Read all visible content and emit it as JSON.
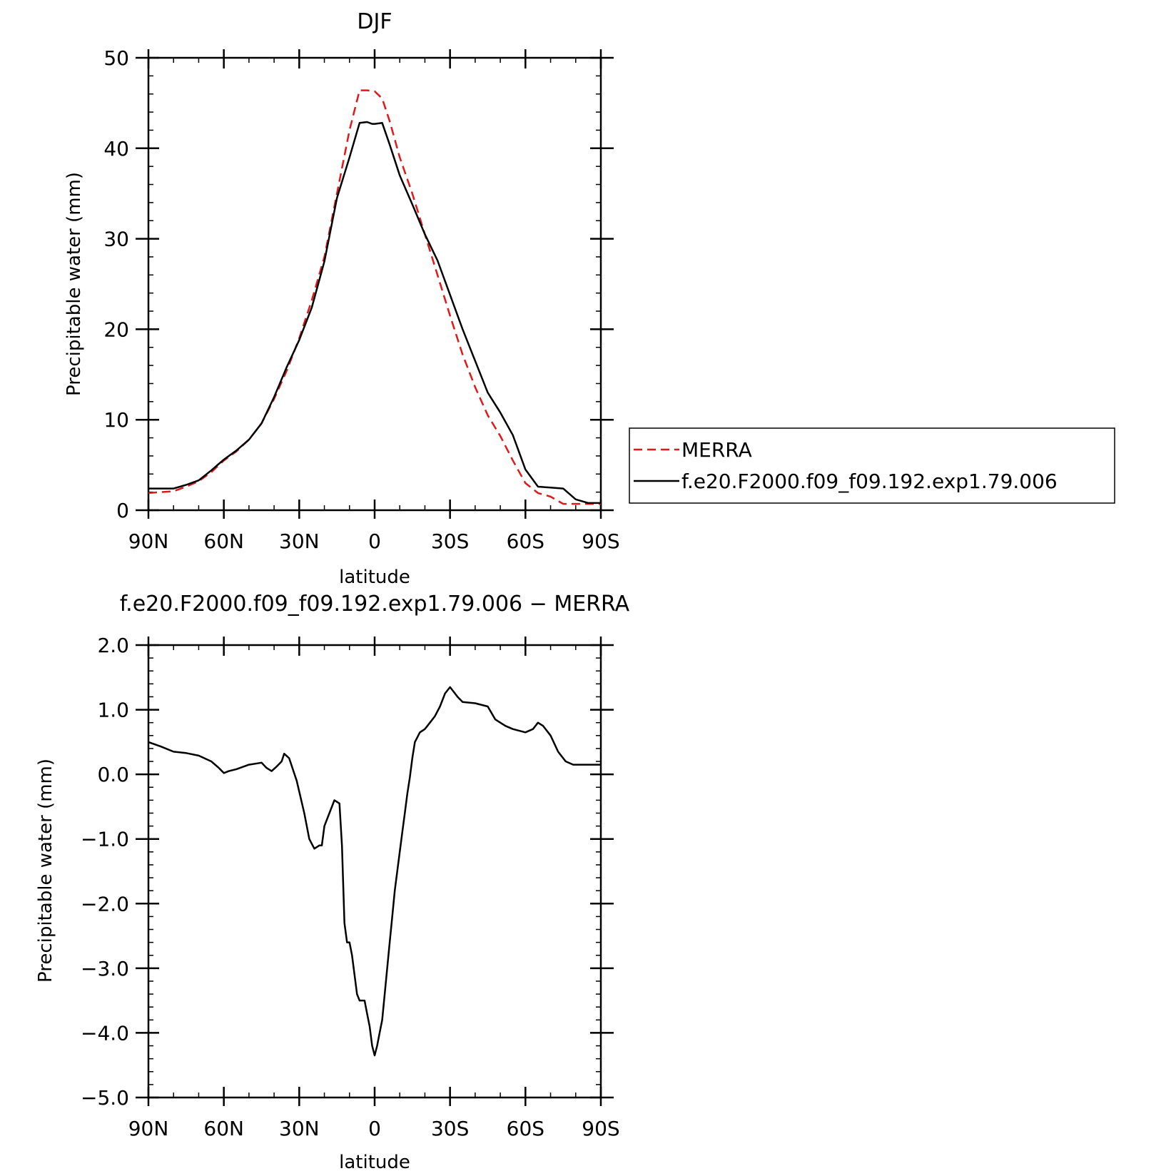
{
  "colors": {
    "merra": "#e0191b",
    "model": "#000000",
    "axes": "#000000"
  },
  "chart_data": [
    {
      "type": "line",
      "title": "DJF",
      "xlabel": "latitude",
      "ylabel": "Precipitable water (mm)",
      "xlim": [
        90,
        -90
      ],
      "ylim": [
        0,
        50
      ],
      "x_ticks": [
        {
          "value": 90,
          "label": "90N"
        },
        {
          "value": 60,
          "label": "60N"
        },
        {
          "value": 30,
          "label": "30N"
        },
        {
          "value": 0,
          "label": "0"
        },
        {
          "value": -30,
          "label": "30S"
        },
        {
          "value": -60,
          "label": "60S"
        },
        {
          "value": -90,
          "label": "90S"
        }
      ],
      "y_ticks": [
        {
          "value": 0,
          "label": "0"
        },
        {
          "value": 10,
          "label": "10"
        },
        {
          "value": 20,
          "label": "20"
        },
        {
          "value": 30,
          "label": "30"
        },
        {
          "value": 40,
          "label": "40"
        },
        {
          "value": 50,
          "label": "50"
        }
      ],
      "x_minor_step": 10,
      "y_minor_step": 2,
      "legend": "right",
      "series": [
        {
          "name": "MERRA",
          "style": "dashed",
          "color": "#e0191b",
          "x": [
            90,
            80,
            75,
            70,
            65,
            60,
            55,
            50,
            45,
            40,
            35,
            30,
            25,
            20,
            15,
            10,
            6,
            3,
            0,
            -3,
            -6,
            -10,
            -15,
            -20,
            -25,
            -30,
            -35,
            -40,
            -45,
            -50,
            -55,
            -60,
            -65,
            -70,
            -75,
            -80,
            -85,
            -90
          ],
          "values": [
            1.9,
            2.1,
            2.6,
            3.2,
            4.2,
            5.5,
            6.5,
            7.8,
            9.6,
            12.3,
            15.4,
            19.0,
            23.2,
            28.0,
            35.0,
            42.0,
            46.4,
            46.4,
            46.3,
            45.5,
            43.0,
            39.0,
            35.0,
            30.5,
            26.0,
            21.5,
            17.2,
            13.6,
            10.5,
            8.2,
            5.5,
            3.0,
            1.9,
            1.5,
            0.7,
            0.7,
            0.7,
            0.7
          ]
        },
        {
          "name": "f.e20.F2000.f09_f09.192.exp1.79.006",
          "style": "solid",
          "color": "#000000",
          "x": [
            90,
            80,
            75,
            70,
            65,
            60,
            55,
            50,
            45,
            40,
            35,
            30,
            25,
            20,
            15,
            10,
            6,
            3,
            1,
            0,
            -3,
            -6,
            -10,
            -15,
            -20,
            -25,
            -30,
            -35,
            -40,
            -45,
            -50,
            -55,
            -60,
            -65,
            -70,
            -75,
            -80,
            -85,
            -90
          ],
          "values": [
            2.4,
            2.4,
            2.8,
            3.3,
            4.4,
            5.6,
            6.6,
            7.8,
            9.6,
            12.5,
            15.8,
            18.8,
            22.4,
            27.5,
            34.5,
            39.0,
            42.8,
            42.9,
            42.7,
            42.7,
            42.8,
            40.4,
            37.0,
            33.8,
            30.5,
            27.6,
            23.8,
            20.0,
            16.5,
            13.0,
            10.8,
            8.3,
            4.5,
            2.6,
            2.5,
            2.4,
            1.2,
            0.8,
            0.8
          ]
        }
      ]
    },
    {
      "type": "line",
      "title": "f.e20.F2000.f09_f09.192.exp1.79.006 − MERRA",
      "xlabel": "latitude",
      "ylabel": "Precipitable water (mm)",
      "xlim": [
        90,
        -90
      ],
      "ylim": [
        -5,
        2
      ],
      "x_ticks": [
        {
          "value": 90,
          "label": "90N"
        },
        {
          "value": 60,
          "label": "60N"
        },
        {
          "value": 30,
          "label": "30N"
        },
        {
          "value": 0,
          "label": "0"
        },
        {
          "value": -30,
          "label": "30S"
        },
        {
          "value": -60,
          "label": "60S"
        },
        {
          "value": -90,
          "label": "90S"
        }
      ],
      "y_ticks": [
        {
          "value": 2,
          "label": "2.0"
        },
        {
          "value": 1,
          "label": "1.0"
        },
        {
          "value": 0,
          "label": "0.0"
        },
        {
          "value": -1,
          "label": "−1.0"
        },
        {
          "value": -2,
          "label": "−2.0"
        },
        {
          "value": -3,
          "label": "−3.0"
        },
        {
          "value": -4,
          "label": "−4.0"
        },
        {
          "value": -5,
          "label": "−5.0"
        }
      ],
      "x_minor_step": 10,
      "y_minor_step": 0.2,
      "series": [
        {
          "style": "solid",
          "color": "#000000",
          "x": [
            90,
            85,
            80,
            75,
            70,
            65,
            62,
            60,
            58,
            55,
            50,
            45,
            43,
            41,
            39,
            37,
            36,
            34,
            31,
            28,
            26,
            24,
            22,
            21,
            20,
            18,
            16,
            14,
            13,
            12,
            11,
            10,
            9,
            8,
            7,
            6,
            5,
            4,
            3,
            2,
            1,
            0,
            -1,
            -2,
            -3,
            -4,
            -5,
            -6,
            -7,
            -8,
            -9,
            -10,
            -11,
            -12,
            -13,
            -14,
            -15,
            -16,
            -18,
            -20,
            -22,
            -24,
            -26,
            -28,
            -30,
            -33,
            -35,
            -40,
            -45,
            -48,
            -50,
            -52,
            -55,
            -60,
            -63,
            -65,
            -67,
            -70,
            -73,
            -76,
            -79,
            -80,
            -82,
            -84,
            -86,
            -88,
            -90
          ],
          "values": [
            0.5,
            0.43,
            0.35,
            0.33,
            0.29,
            0.2,
            0.1,
            0.02,
            0.05,
            0.08,
            0.15,
            0.18,
            0.1,
            0.05,
            0.12,
            0.2,
            0.32,
            0.25,
            -0.1,
            -0.6,
            -1.0,
            -1.15,
            -1.1,
            -1.1,
            -0.8,
            -0.6,
            -0.4,
            -0.45,
            -1.1,
            -2.3,
            -2.6,
            -2.6,
            -2.8,
            -3.1,
            -3.4,
            -3.5,
            -3.5,
            -3.5,
            -3.7,
            -3.9,
            -4.2,
            -4.35,
            -4.2,
            -4.0,
            -3.8,
            -3.4,
            -3.0,
            -2.6,
            -2.2,
            -1.8,
            -1.5,
            -1.2,
            -0.9,
            -0.6,
            -0.3,
            -0.05,
            0.25,
            0.5,
            0.65,
            0.7,
            0.8,
            0.9,
            1.05,
            1.25,
            1.35,
            1.2,
            1.12,
            1.1,
            1.05,
            0.85,
            0.8,
            0.75,
            0.7,
            0.65,
            0.7,
            0.8,
            0.75,
            0.6,
            0.35,
            0.2,
            0.15,
            0.15,
            0.15,
            0.15,
            0.15,
            0.15,
            0.15
          ]
        }
      ]
    }
  ]
}
